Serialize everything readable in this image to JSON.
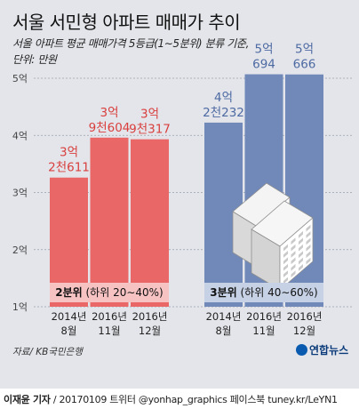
{
  "title": "서울 서민형 아파트 매매가 추이",
  "subtitle": "서울 아파트 평균 매매가격 5등급(1∼5분위) 분류 기준,\n단위: 만원",
  "source": "자료/ KB국민은행",
  "logo": "연합뉴스",
  "footer": {
    "author": "이재윤 기자",
    "credit": " / 20170109  트위터 @yonhap_graphics  페이스북 tuney.kr/LeYN1"
  },
  "colors": {
    "group1": "#e96766",
    "group1_label": "#d9403f",
    "group2": "#7089b9",
    "group2_label": "#4e6aa3",
    "background": "#e3e5ea"
  },
  "chart_data": {
    "type": "bar",
    "y_ticks": [
      "1억",
      "2억",
      "3억",
      "4억",
      "5억"
    ],
    "ylim": [
      10000,
      50000
    ],
    "grid": true,
    "groups": [
      {
        "name": "2분위",
        "band_label": {
          "bold": "2분위",
          "rest": " (하위 20∼40%)"
        },
        "color": "#e96766",
        "bars": [
          {
            "date_line1": "2014년",
            "date_line2": "8월",
            "value": 32611,
            "label_line1": "3억",
            "label_line2": "2천611"
          },
          {
            "date_line1": "2016년",
            "date_line2": "11월",
            "value": 39604,
            "label_line1": "3억",
            "label_line2": "9천604"
          },
          {
            "date_line1": "2016년",
            "date_line2": "12월",
            "value": 39317,
            "label_line1": "3억",
            "label_line2": "9천317"
          }
        ]
      },
      {
        "name": "3분위",
        "band_label": {
          "bold": "3분위",
          "rest": " (하위 40∼60%)"
        },
        "color": "#7089b9",
        "bars": [
          {
            "date_line1": "2014년",
            "date_line2": "8월",
            "value": 42232,
            "label_line1": "4억",
            "label_line2": "2천232"
          },
          {
            "date_line1": "2016년",
            "date_line2": "11월",
            "value": 50694,
            "label_line1": "5억",
            "label_line2": "694"
          },
          {
            "date_line1": "2016년",
            "date_line2": "12월",
            "value": 50666,
            "label_line1": "5억",
            "label_line2": "666"
          }
        ]
      }
    ]
  }
}
